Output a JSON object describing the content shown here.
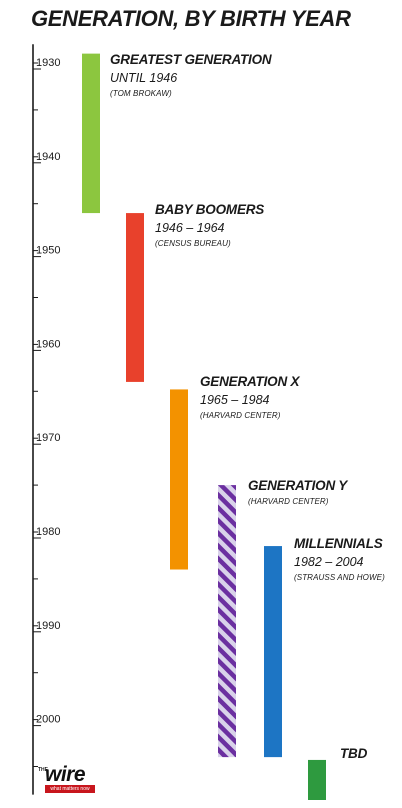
{
  "title": "GENERATION, BY BIRTH YEAR",
  "logo": {
    "the": "THE",
    "wire": "wire",
    "tagline": "what matters now"
  },
  "colors": {
    "greatest": "#8cc63f",
    "boomers": "#e8412c",
    "genx": "#f39200",
    "geny_stripe_a": "#6b2fa0",
    "geny_stripe_b": "#d9d2ea",
    "millennials": "#1d75c4",
    "tbd": "#2e9a3f",
    "axis": "#1a1a1a"
  },
  "chart_data": {
    "type": "timeline",
    "title": "GENERATION, BY BIRTH YEAR",
    "axis": {
      "ticks": [
        1930,
        1940,
        1950,
        1960,
        1970,
        1980,
        1990,
        2000
      ],
      "range": [
        1928,
        2008
      ],
      "minor_step": 5
    },
    "generations": [
      {
        "key": "greatest",
        "name": "GREATEST GENERATION",
        "range_text": "UNTIL 1946",
        "source": "(TOM BROKAW)",
        "start": 1929,
        "end": 1946,
        "pattern": "solid"
      },
      {
        "key": "boomers",
        "name": "BABY BOOMERS",
        "range_text": "1946 – 1964",
        "source": "(CENSUS BUREAU)",
        "start": 1946,
        "end": 1964,
        "pattern": "solid"
      },
      {
        "key": "genx",
        "name": "GENERATION X",
        "range_text": "1965 – 1984",
        "source": "(HARVARD CENTER)",
        "start": 1964.8,
        "end": 1984,
        "pattern": "solid"
      },
      {
        "key": "geny",
        "name": "GENERATION Y",
        "range_text": "",
        "source": "(HARVARD CENTER)",
        "start": 1975,
        "end": 2004,
        "pattern": "striped"
      },
      {
        "key": "millennials",
        "name": "MILLENNIALS",
        "range_text": "1982 – 2004",
        "source": "(STRAUSS AND HOWE)",
        "start": 1981.5,
        "end": 2004,
        "pattern": "solid"
      },
      {
        "key": "tbd",
        "name": "TBD",
        "range_text": "",
        "source": "",
        "start": 2004.3,
        "end": 2010,
        "pattern": "solid"
      }
    ]
  }
}
